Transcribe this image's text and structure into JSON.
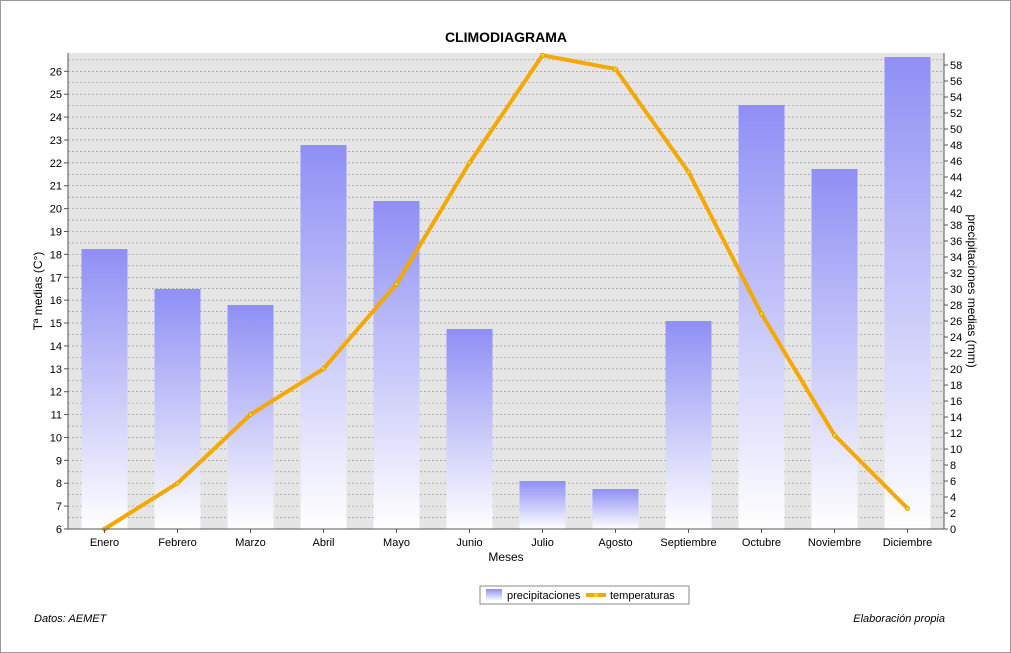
{
  "chart_data": {
    "type": "bar",
    "title": "CLIMODIAGRAMA",
    "xlabel": "Meses",
    "ylabel_left": "Tª medias (C°)",
    "ylabel_right": "precipitaciones medias (mm)",
    "categories": [
      "Enero",
      "Febrero",
      "Marzo",
      "Abril",
      "Mayo",
      "Junio",
      "Julio",
      "Agosto",
      "Septiembre",
      "Octubre",
      "Noviembre",
      "Diciembre"
    ],
    "series": [
      {
        "name": "precipitaciones",
        "chart": "bar",
        "axis": "right",
        "values": [
          35,
          30,
          28,
          48,
          41,
          25,
          6,
          5,
          26,
          53,
          45,
          59
        ]
      },
      {
        "name": "temperaturas",
        "chart": "line",
        "axis": "left",
        "values": [
          6.0,
          8.0,
          11.0,
          13.0,
          16.7,
          22.0,
          26.7,
          26.1,
          21.6,
          15.4,
          10.1,
          6.9
        ]
      }
    ],
    "ylim_left": [
      6,
      26.8
    ],
    "ylim_right": [
      0,
      59.5
    ],
    "yticks_left": [
      6,
      7,
      8,
      9,
      10,
      11,
      12,
      13,
      14,
      15,
      16,
      17,
      18,
      19,
      20,
      21,
      22,
      23,
      24,
      25,
      26
    ],
    "yticks_right": [
      0,
      2,
      4,
      6,
      8,
      10,
      12,
      14,
      16,
      18,
      20,
      22,
      24,
      26,
      28,
      30,
      32,
      34,
      36,
      38,
      40,
      42,
      44,
      46,
      48,
      50,
      52,
      54,
      56,
      58
    ],
    "grid": true,
    "legend_position": "bottom-center",
    "colors": {
      "bar_top": "#8f8ff5",
      "bar_bottom": "#ffffff",
      "line": "#f5a800",
      "line_marker": "#f5d000",
      "plot_bg": "#e5e5e5",
      "grid": "#8a8a8a"
    }
  },
  "footer": {
    "source": "Datos: AEMET",
    "credit": "Elaboración propia"
  }
}
